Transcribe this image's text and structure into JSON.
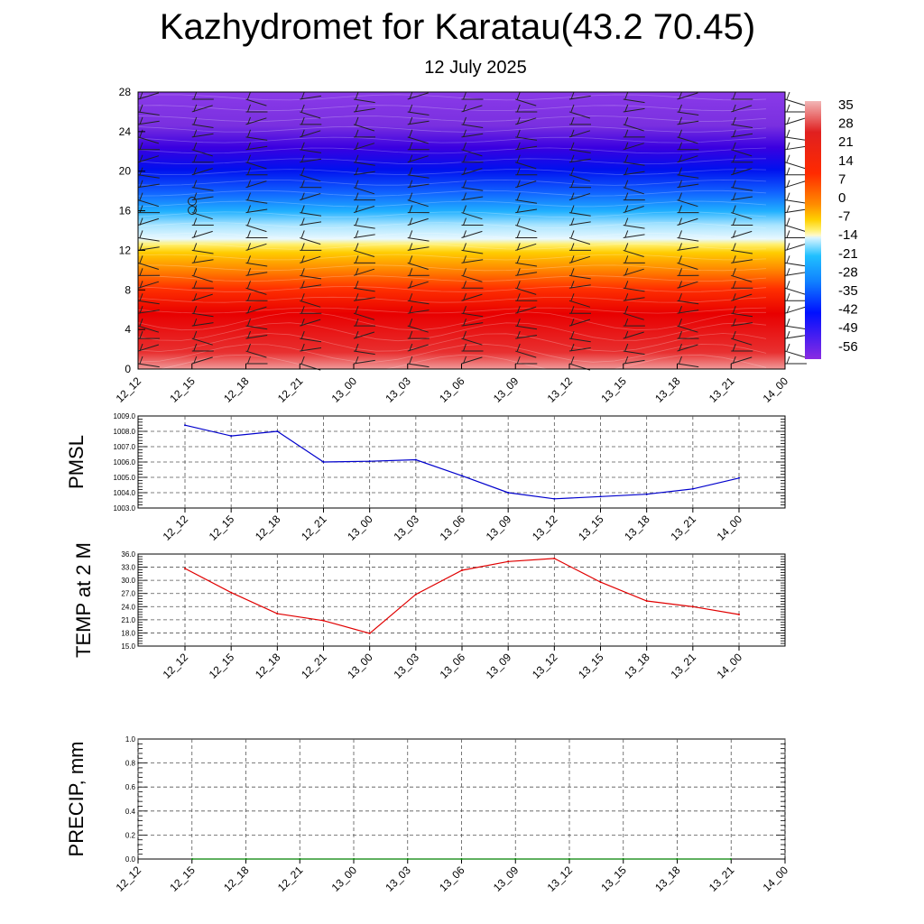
{
  "header": {
    "title": "Kazhydromet for Karatau(43.2 70.45)",
    "subtitle": "12 July 2025"
  },
  "chart_data": [
    {
      "type": "heatmap",
      "name": "vertical-profile",
      "x_labels": [
        "12_12",
        "12_15",
        "12_18",
        "12_21",
        "13_00",
        "13_03",
        "13_06",
        "13_09",
        "13_12",
        "13_15",
        "13_18",
        "13_21",
        "14_00"
      ],
      "y_ticks": [
        0,
        4,
        8,
        12,
        16,
        20,
        24,
        28
      ],
      "ylim": [
        0,
        28
      ],
      "colorbar_labels": [
        35,
        28,
        21,
        14,
        7,
        0,
        -7,
        -14,
        -21,
        -28,
        -35,
        -42,
        -49,
        -56
      ],
      "colorbar_range": [
        -60,
        38
      ],
      "color_stops": [
        {
          "value": 38,
          "color": "#f2b7b7"
        },
        {
          "value": 28,
          "color": "#e02020"
        },
        {
          "value": 14,
          "color": "#ff3a00"
        },
        {
          "value": 5,
          "color": "#ff9a00"
        },
        {
          "value": -3,
          "color": "#ffe200"
        },
        {
          "value": -10,
          "color": "#fff8b0"
        },
        {
          "value": -15,
          "color": "#b8ecff"
        },
        {
          "value": -28,
          "color": "#00a8ff"
        },
        {
          "value": -42,
          "color": "#0000ff"
        },
        {
          "value": -60,
          "color": "#8a2be2"
        }
      ]
    },
    {
      "type": "line",
      "name": "pmsl",
      "ylabel": "PMSL",
      "categories": [
        "12_12",
        "12_15",
        "12_18",
        "12_21",
        "13_00",
        "13_03",
        "13_06",
        "13_09",
        "13_12",
        "13_15",
        "13_18",
        "13_21",
        "14_00"
      ],
      "values": [
        1008.4,
        1007.7,
        1008.0,
        1006.0,
        1006.05,
        1006.15,
        1005.1,
        1004.0,
        1003.6,
        1003.75,
        1003.9,
        1004.25,
        1004.95
      ],
      "ylim": [
        1003.0,
        1009.0
      ],
      "yticks": [
        "1003.0",
        "1004.0",
        "1005.0",
        "1006.0",
        "1007.0",
        "1008.0",
        "1009.0"
      ],
      "color": "#0000cc"
    },
    {
      "type": "line",
      "name": "temp-2m",
      "ylabel": "TEMP at 2 M",
      "categories": [
        "12_12",
        "12_15",
        "12_18",
        "12_21",
        "13_00",
        "13_03",
        "13_06",
        "13_09",
        "13_12",
        "13_15",
        "13_18",
        "13_21",
        "14_00"
      ],
      "values": [
        32.7,
        27.2,
        22.4,
        20.8,
        17.9,
        26.8,
        32.3,
        34.3,
        35.0,
        29.6,
        25.3,
        24.0,
        22.2
      ],
      "ylim": [
        15.0,
        36.0
      ],
      "yticks": [
        "15.0",
        "18.0",
        "21.0",
        "24.0",
        "27.0",
        "30.0",
        "33.0",
        "36.0"
      ],
      "color": "#e00000"
    },
    {
      "type": "line",
      "name": "precip",
      "ylabel": "PRECIP, mm",
      "categories": [
        "12_15",
        "12_18",
        "12_21",
        "13_00",
        "13_03",
        "13_06",
        "13_09",
        "13_12",
        "13_15",
        "13_18",
        "13_21"
      ],
      "values": [
        0,
        0,
        0,
        0,
        0,
        0,
        0,
        0,
        0,
        0,
        0
      ],
      "ylim": [
        0.0,
        1.0
      ],
      "yticks": [
        "0.0",
        "0.2",
        "0.4",
        "0.6",
        "0.8",
        "1.0"
      ],
      "x_labels": [
        "12_12",
        "12_15",
        "12_18",
        "12_21",
        "13_00",
        "13_03",
        "13_06",
        "13_09",
        "13_12",
        "13_15",
        "13_18",
        "13_21",
        "14_00"
      ],
      "color": "#008000"
    }
  ]
}
